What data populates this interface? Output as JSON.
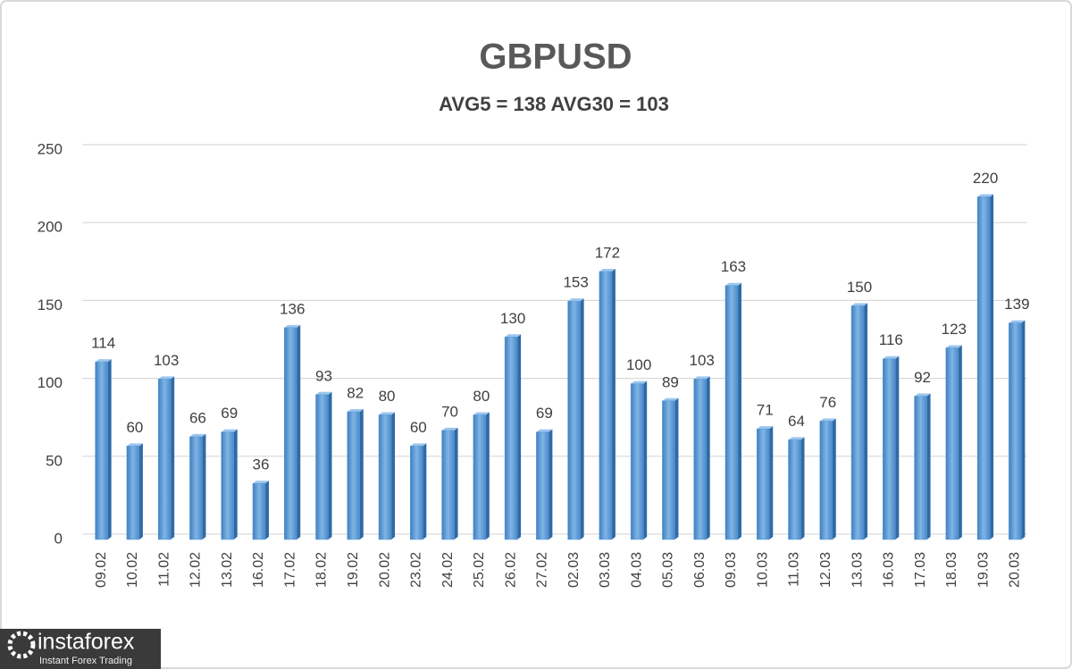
{
  "chart_data": {
    "type": "bar",
    "title": "GBPUSD",
    "subtitle": "AVG5 = 138 AVG30 = 103",
    "categories": [
      "09.02",
      "10.02",
      "11.02",
      "12.02",
      "13.02",
      "16.02",
      "17.02",
      "18.02",
      "19.02",
      "20.02",
      "23.02",
      "24.02",
      "25.02",
      "26.02",
      "27.02",
      "02.03",
      "03.03",
      "04.03",
      "05.03",
      "06.03",
      "09.03",
      "10.03",
      "11.03",
      "12.03",
      "13.03",
      "16.03",
      "17.03",
      "18.03",
      "19.03",
      "20.03"
    ],
    "values": [
      114,
      60,
      103,
      66,
      69,
      36,
      136,
      93,
      82,
      80,
      60,
      70,
      80,
      130,
      69,
      153,
      172,
      100,
      89,
      103,
      163,
      71,
      64,
      76,
      150,
      116,
      92,
      123,
      220,
      139
    ],
    "color": "#5b9bd5",
    "ylim": [
      0,
      250
    ],
    "yticks": [
      0,
      50,
      100,
      150,
      200,
      250
    ],
    "grid": true
  },
  "logo": {
    "name": "instaforex",
    "tagline": "Instant Forex Trading"
  }
}
